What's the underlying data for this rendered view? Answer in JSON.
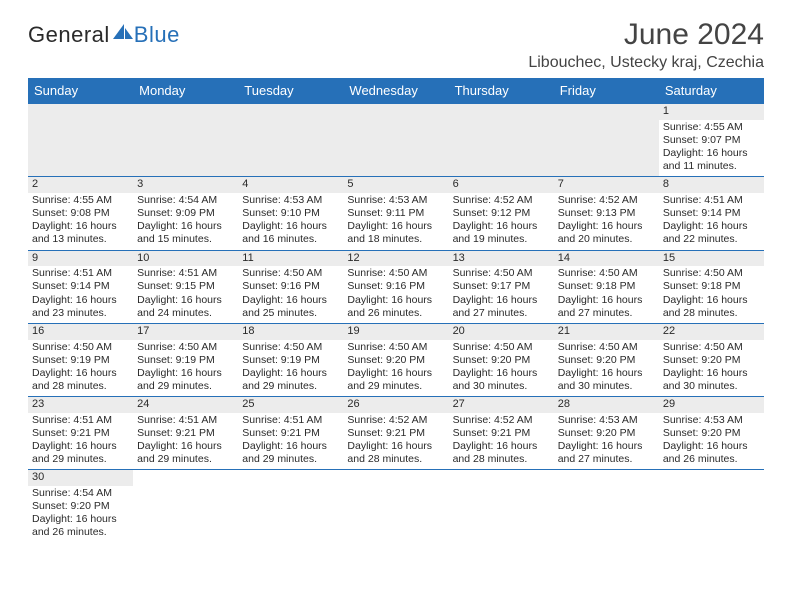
{
  "logo": {
    "part1": "General",
    "part2": "Blue",
    "color1": "#2a2a2a",
    "color2": "#2670b8"
  },
  "title": "June 2024",
  "location": "Libouchec, Ustecky kraj, Czechia",
  "colors": {
    "header_bg": "#2670b8",
    "header_text": "#ffffff",
    "daynum_bg": "#ececec",
    "border": "#2670b8",
    "text": "#2a2a2a"
  },
  "dayHeaders": [
    "Sunday",
    "Monday",
    "Tuesday",
    "Wednesday",
    "Thursday",
    "Friday",
    "Saturday"
  ],
  "weeks": [
    [
      null,
      null,
      null,
      null,
      null,
      null,
      {
        "n": "1",
        "sr": "Sunrise: 4:55 AM",
        "ss": "Sunset: 9:07 PM",
        "d1": "Daylight: 16 hours",
        "d2": "and 11 minutes."
      }
    ],
    [
      {
        "n": "2",
        "sr": "Sunrise: 4:55 AM",
        "ss": "Sunset: 9:08 PM",
        "d1": "Daylight: 16 hours",
        "d2": "and 13 minutes."
      },
      {
        "n": "3",
        "sr": "Sunrise: 4:54 AM",
        "ss": "Sunset: 9:09 PM",
        "d1": "Daylight: 16 hours",
        "d2": "and 15 minutes."
      },
      {
        "n": "4",
        "sr": "Sunrise: 4:53 AM",
        "ss": "Sunset: 9:10 PM",
        "d1": "Daylight: 16 hours",
        "d2": "and 16 minutes."
      },
      {
        "n": "5",
        "sr": "Sunrise: 4:53 AM",
        "ss": "Sunset: 9:11 PM",
        "d1": "Daylight: 16 hours",
        "d2": "and 18 minutes."
      },
      {
        "n": "6",
        "sr": "Sunrise: 4:52 AM",
        "ss": "Sunset: 9:12 PM",
        "d1": "Daylight: 16 hours",
        "d2": "and 19 minutes."
      },
      {
        "n": "7",
        "sr": "Sunrise: 4:52 AM",
        "ss": "Sunset: 9:13 PM",
        "d1": "Daylight: 16 hours",
        "d2": "and 20 minutes."
      },
      {
        "n": "8",
        "sr": "Sunrise: 4:51 AM",
        "ss": "Sunset: 9:14 PM",
        "d1": "Daylight: 16 hours",
        "d2": "and 22 minutes."
      }
    ],
    [
      {
        "n": "9",
        "sr": "Sunrise: 4:51 AM",
        "ss": "Sunset: 9:14 PM",
        "d1": "Daylight: 16 hours",
        "d2": "and 23 minutes."
      },
      {
        "n": "10",
        "sr": "Sunrise: 4:51 AM",
        "ss": "Sunset: 9:15 PM",
        "d1": "Daylight: 16 hours",
        "d2": "and 24 minutes."
      },
      {
        "n": "11",
        "sr": "Sunrise: 4:50 AM",
        "ss": "Sunset: 9:16 PM",
        "d1": "Daylight: 16 hours",
        "d2": "and 25 minutes."
      },
      {
        "n": "12",
        "sr": "Sunrise: 4:50 AM",
        "ss": "Sunset: 9:16 PM",
        "d1": "Daylight: 16 hours",
        "d2": "and 26 minutes."
      },
      {
        "n": "13",
        "sr": "Sunrise: 4:50 AM",
        "ss": "Sunset: 9:17 PM",
        "d1": "Daylight: 16 hours",
        "d2": "and 27 minutes."
      },
      {
        "n": "14",
        "sr": "Sunrise: 4:50 AM",
        "ss": "Sunset: 9:18 PM",
        "d1": "Daylight: 16 hours",
        "d2": "and 27 minutes."
      },
      {
        "n": "15",
        "sr": "Sunrise: 4:50 AM",
        "ss": "Sunset: 9:18 PM",
        "d1": "Daylight: 16 hours",
        "d2": "and 28 minutes."
      }
    ],
    [
      {
        "n": "16",
        "sr": "Sunrise: 4:50 AM",
        "ss": "Sunset: 9:19 PM",
        "d1": "Daylight: 16 hours",
        "d2": "and 28 minutes."
      },
      {
        "n": "17",
        "sr": "Sunrise: 4:50 AM",
        "ss": "Sunset: 9:19 PM",
        "d1": "Daylight: 16 hours",
        "d2": "and 29 minutes."
      },
      {
        "n": "18",
        "sr": "Sunrise: 4:50 AM",
        "ss": "Sunset: 9:19 PM",
        "d1": "Daylight: 16 hours",
        "d2": "and 29 minutes."
      },
      {
        "n": "19",
        "sr": "Sunrise: 4:50 AM",
        "ss": "Sunset: 9:20 PM",
        "d1": "Daylight: 16 hours",
        "d2": "and 29 minutes."
      },
      {
        "n": "20",
        "sr": "Sunrise: 4:50 AM",
        "ss": "Sunset: 9:20 PM",
        "d1": "Daylight: 16 hours",
        "d2": "and 30 minutes."
      },
      {
        "n": "21",
        "sr": "Sunrise: 4:50 AM",
        "ss": "Sunset: 9:20 PM",
        "d1": "Daylight: 16 hours",
        "d2": "and 30 minutes."
      },
      {
        "n": "22",
        "sr": "Sunrise: 4:50 AM",
        "ss": "Sunset: 9:20 PM",
        "d1": "Daylight: 16 hours",
        "d2": "and 30 minutes."
      }
    ],
    [
      {
        "n": "23",
        "sr": "Sunrise: 4:51 AM",
        "ss": "Sunset: 9:21 PM",
        "d1": "Daylight: 16 hours",
        "d2": "and 29 minutes."
      },
      {
        "n": "24",
        "sr": "Sunrise: 4:51 AM",
        "ss": "Sunset: 9:21 PM",
        "d1": "Daylight: 16 hours",
        "d2": "and 29 minutes."
      },
      {
        "n": "25",
        "sr": "Sunrise: 4:51 AM",
        "ss": "Sunset: 9:21 PM",
        "d1": "Daylight: 16 hours",
        "d2": "and 29 minutes."
      },
      {
        "n": "26",
        "sr": "Sunrise: 4:52 AM",
        "ss": "Sunset: 9:21 PM",
        "d1": "Daylight: 16 hours",
        "d2": "and 28 minutes."
      },
      {
        "n": "27",
        "sr": "Sunrise: 4:52 AM",
        "ss": "Sunset: 9:21 PM",
        "d1": "Daylight: 16 hours",
        "d2": "and 28 minutes."
      },
      {
        "n": "28",
        "sr": "Sunrise: 4:53 AM",
        "ss": "Sunset: 9:20 PM",
        "d1": "Daylight: 16 hours",
        "d2": "and 27 minutes."
      },
      {
        "n": "29",
        "sr": "Sunrise: 4:53 AM",
        "ss": "Sunset: 9:20 PM",
        "d1": "Daylight: 16 hours",
        "d2": "and 26 minutes."
      }
    ],
    [
      {
        "n": "30",
        "sr": "Sunrise: 4:54 AM",
        "ss": "Sunset: 9:20 PM",
        "d1": "Daylight: 16 hours",
        "d2": "and 26 minutes."
      },
      null,
      null,
      null,
      null,
      null,
      null
    ]
  ]
}
